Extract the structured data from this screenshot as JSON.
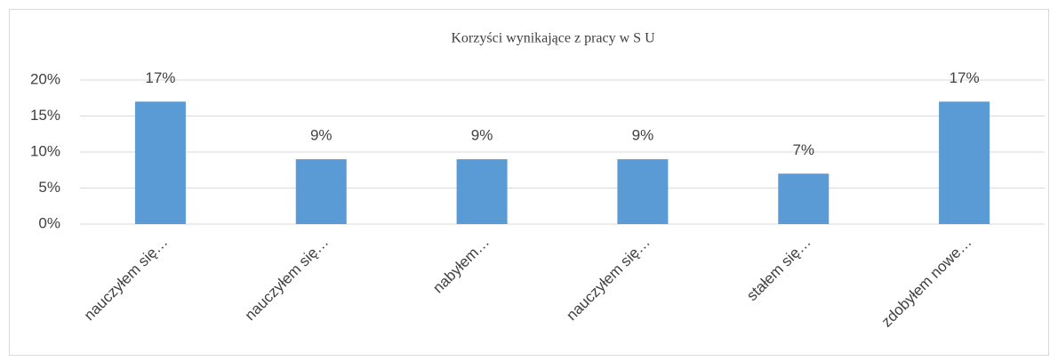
{
  "chart_data": {
    "type": "bar",
    "title": "Korzyści wynikające z pracy w S U",
    "categories": [
      "nauczyłem się…",
      "nauczyłem się…",
      "nabyłem…",
      "nauczyłem się…",
      "stałem się…",
      "zdobyłem nowe…"
    ],
    "values": [
      17,
      9,
      9,
      9,
      7,
      17
    ],
    "value_labels": [
      "17%",
      "9%",
      "9%",
      "9%",
      "7%",
      "17%"
    ],
    "color": "#5b9bd5",
    "ylim": [
      0,
      20
    ],
    "yticks": [
      {
        "value": 0,
        "label": "0%"
      },
      {
        "value": 5,
        "label": "5%"
      },
      {
        "value": 10,
        "label": "10%"
      },
      {
        "value": 15,
        "label": "15%"
      },
      {
        "value": 20,
        "label": "20%"
      }
    ],
    "grid": true
  }
}
